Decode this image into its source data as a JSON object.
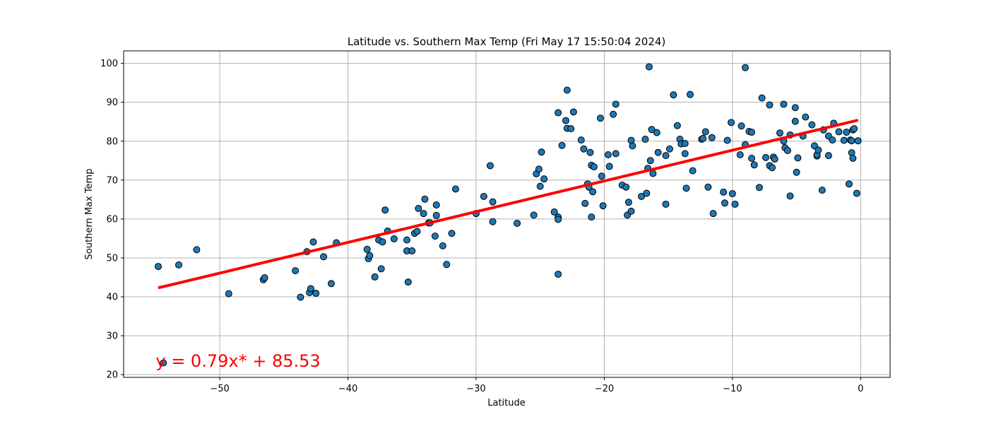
{
  "chart_data": {
    "type": "scatter",
    "title": "Latitude vs. Southern Max Temp (Fri May 17 15:50:04 2024)",
    "xlabel": "Latitude",
    "ylabel": "Southern Max Temp",
    "xlim": [
      -57.5,
      2.3
    ],
    "ylim": [
      19.3,
      103.2
    ],
    "xticks": [
      -50,
      -40,
      -30,
      -20,
      -10,
      0
    ],
    "yticks": [
      20,
      30,
      40,
      50,
      60,
      70,
      80,
      90,
      100
    ],
    "xtick_labels": [
      "−50",
      "−40",
      "−30",
      "−20",
      "−10",
      "0"
    ],
    "ytick_labels": [
      "20",
      "30",
      "40",
      "50",
      "60",
      "70",
      "80",
      "90",
      "100"
    ],
    "grid": true,
    "series": [
      {
        "type": "scatter",
        "color": "#1f77b4",
        "edgecolor": "#000000",
        "points": [
          [
            -54.8,
            47.8
          ],
          [
            -54.4,
            23.0
          ],
          [
            -53.2,
            48.2
          ],
          [
            -51.8,
            52.1
          ],
          [
            -49.3,
            40.8
          ],
          [
            -46.6,
            44.4
          ],
          [
            -46.5,
            44.9
          ],
          [
            -44.1,
            46.7
          ],
          [
            -43.7,
            39.9
          ],
          [
            -43.2,
            51.6
          ],
          [
            -43.0,
            41.1
          ],
          [
            -42.9,
            42.1
          ],
          [
            -42.7,
            54.1
          ],
          [
            -42.5,
            40.9
          ],
          [
            -41.9,
            50.3
          ],
          [
            -41.3,
            43.4
          ],
          [
            -40.9,
            53.9
          ],
          [
            -38.5,
            52.2
          ],
          [
            -38.4,
            49.8
          ],
          [
            -38.3,
            50.6
          ],
          [
            -37.9,
            45.1
          ],
          [
            -37.6,
            54.6
          ],
          [
            -37.4,
            47.2
          ],
          [
            -37.3,
            54.1
          ],
          [
            -37.1,
            62.3
          ],
          [
            -36.9,
            56.9
          ],
          [
            -36.4,
            54.9
          ],
          [
            -35.4,
            51.8
          ],
          [
            -35.4,
            54.6
          ],
          [
            -35.3,
            43.8
          ],
          [
            -35.0,
            51.8
          ],
          [
            -34.8,
            56.3
          ],
          [
            -34.6,
            56.8
          ],
          [
            -34.5,
            62.7
          ],
          [
            -34.1,
            61.4
          ],
          [
            -34.0,
            65.1
          ],
          [
            -33.7,
            59.0
          ],
          [
            -33.6,
            59.0
          ],
          [
            -33.2,
            55.6
          ],
          [
            -33.1,
            60.9
          ],
          [
            -33.1,
            63.6
          ],
          [
            -32.6,
            53.1
          ],
          [
            -32.3,
            48.3
          ],
          [
            -31.9,
            56.3
          ],
          [
            -31.6,
            67.7
          ],
          [
            -30.0,
            61.4
          ],
          [
            -29.4,
            65.8
          ],
          [
            -28.9,
            73.7
          ],
          [
            -28.7,
            64.4
          ],
          [
            -28.7,
            59.3
          ],
          [
            -26.8,
            58.9
          ],
          [
            -25.5,
            61.0
          ],
          [
            -25.3,
            71.6
          ],
          [
            -25.1,
            72.8
          ],
          [
            -25.0,
            68.4
          ],
          [
            -24.9,
            77.2
          ],
          [
            -24.7,
            70.3
          ],
          [
            -23.9,
            61.8
          ],
          [
            -23.6,
            87.3
          ],
          [
            -23.6,
            45.8
          ],
          [
            -23.6,
            60.5
          ],
          [
            -23.6,
            59.9
          ],
          [
            -23.3,
            78.9
          ],
          [
            -23.0,
            85.3
          ],
          [
            -22.9,
            93.1
          ],
          [
            -22.9,
            83.3
          ],
          [
            -22.6,
            83.2
          ],
          [
            -22.4,
            87.5
          ],
          [
            -21.8,
            80.3
          ],
          [
            -21.6,
            78.0
          ],
          [
            -21.5,
            64.0
          ],
          [
            -21.3,
            69.0
          ],
          [
            -21.2,
            68.2
          ],
          [
            -21.1,
            77.1
          ],
          [
            -21.0,
            73.8
          ],
          [
            -21.0,
            60.5
          ],
          [
            -20.9,
            67.0
          ],
          [
            -20.8,
            73.4
          ],
          [
            -20.3,
            85.9
          ],
          [
            -20.2,
            71.0
          ],
          [
            -20.1,
            63.4
          ],
          [
            -19.7,
            76.5
          ],
          [
            -19.6,
            73.5
          ],
          [
            -19.3,
            86.9
          ],
          [
            -19.1,
            89.5
          ],
          [
            -19.1,
            76.8
          ],
          [
            -18.6,
            68.7
          ],
          [
            -18.3,
            68.2
          ],
          [
            -18.2,
            61.0
          ],
          [
            -18.1,
            64.3
          ],
          [
            -17.9,
            62.0
          ],
          [
            -17.9,
            80.2
          ],
          [
            -17.8,
            78.8
          ],
          [
            -17.1,
            65.8
          ],
          [
            -16.8,
            80.5
          ],
          [
            -16.7,
            66.6
          ],
          [
            -16.6,
            73.0
          ],
          [
            -16.5,
            99.1
          ],
          [
            -16.4,
            75.0
          ],
          [
            -16.3,
            83.0
          ],
          [
            -16.2,
            71.7
          ],
          [
            -15.9,
            82.2
          ],
          [
            -15.8,
            77.1
          ],
          [
            -15.2,
            63.8
          ],
          [
            -15.2,
            76.3
          ],
          [
            -14.9,
            78.0
          ],
          [
            -14.6,
            91.9
          ],
          [
            -14.3,
            84.0
          ],
          [
            -14.1,
            80.5
          ],
          [
            -14.0,
            79.3
          ],
          [
            -13.7,
            76.8
          ],
          [
            -13.7,
            79.4
          ],
          [
            -13.6,
            67.9
          ],
          [
            -13.3,
            92.0
          ],
          [
            -13.1,
            72.4
          ],
          [
            -12.4,
            80.5
          ],
          [
            -12.3,
            80.7
          ],
          [
            -12.1,
            82.4
          ],
          [
            -11.9,
            68.2
          ],
          [
            -11.6,
            80.9
          ],
          [
            -11.5,
            61.4
          ],
          [
            -10.7,
            66.9
          ],
          [
            -10.6,
            64.1
          ],
          [
            -10.4,
            80.2
          ],
          [
            -10.1,
            84.8
          ],
          [
            -10.0,
            66.5
          ],
          [
            -9.8,
            63.8
          ],
          [
            -9.4,
            76.5
          ],
          [
            -9.3,
            83.9
          ],
          [
            -9.0,
            98.9
          ],
          [
            -9.0,
            79.1
          ],
          [
            -8.7,
            82.5
          ],
          [
            -8.5,
            82.3
          ],
          [
            -8.5,
            75.6
          ],
          [
            -8.3,
            73.9
          ],
          [
            -7.9,
            68.1
          ],
          [
            -7.7,
            91.1
          ],
          [
            -7.4,
            75.8
          ],
          [
            -7.1,
            89.3
          ],
          [
            -7.1,
            73.7
          ],
          [
            -6.9,
            73.2
          ],
          [
            -6.8,
            75.9
          ],
          [
            -6.7,
            75.4
          ],
          [
            -6.3,
            82.1
          ],
          [
            -6.0,
            89.5
          ],
          [
            -6.0,
            80.0
          ],
          [
            -5.9,
            78.3
          ],
          [
            -5.7,
            77.6
          ],
          [
            -5.5,
            65.9
          ],
          [
            -5.5,
            81.6
          ],
          [
            -5.1,
            88.6
          ],
          [
            -5.1,
            85.1
          ],
          [
            -5.0,
            72.0
          ],
          [
            -4.9,
            75.7
          ],
          [
            -4.5,
            81.3
          ],
          [
            -4.3,
            86.2
          ],
          [
            -3.8,
            84.2
          ],
          [
            -3.6,
            78.8
          ],
          [
            -3.4,
            76.2
          ],
          [
            -3.4,
            76.5
          ],
          [
            -3.3,
            77.7
          ],
          [
            -3.0,
            67.4
          ],
          [
            -2.9,
            82.9
          ],
          [
            -2.5,
            81.3
          ],
          [
            -2.5,
            76.3
          ],
          [
            -2.2,
            80.3
          ],
          [
            -2.1,
            84.6
          ],
          [
            -1.7,
            82.4
          ],
          [
            -1.3,
            80.2
          ],
          [
            -1.1,
            82.3
          ],
          [
            -0.9,
            69.0
          ],
          [
            -0.8,
            80.3
          ],
          [
            -0.7,
            80.1
          ],
          [
            -0.7,
            77.0
          ],
          [
            -0.6,
            75.6
          ],
          [
            -0.6,
            82.9
          ],
          [
            -0.5,
            83.2
          ],
          [
            -0.3,
            66.6
          ],
          [
            -0.2,
            80.1
          ]
        ]
      },
      {
        "type": "line",
        "color": "#ff0000",
        "x": [
          -54.8,
          -0.2
        ],
        "y": [
          42.3,
          85.4
        ]
      }
    ],
    "annotations": [
      {
        "text": "y = 0.79x* + 85.53",
        "x": -55.0,
        "y": 23.5,
        "color": "#ff0000"
      }
    ]
  }
}
